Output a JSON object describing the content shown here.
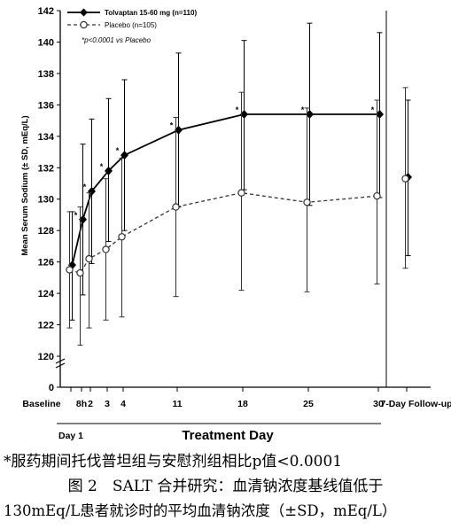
{
  "chart_data": {
    "type": "line",
    "ylabel": "Mean Serum Sodium (± SD, mEq/L)",
    "xlabel": "Treatment Day",
    "ylim": [
      120,
      142
    ],
    "y_ticks": [
      120,
      122,
      124,
      126,
      128,
      130,
      132,
      134,
      136,
      138,
      140,
      142
    ],
    "y_zero_label": "0",
    "x_ticks": [
      "Baseline",
      "8h",
      "2",
      "3",
      "4",
      "11",
      "18",
      "25",
      "30",
      "7-Day Follow-up"
    ],
    "x_sublabel": "Day 1",
    "legend_position": "top-left",
    "annotation": "*p<0.0001 vs Placebo",
    "series": [
      {
        "name": "Tolvaptan 15-60 mg (n=110)",
        "marker": "filled-diamond",
        "line_style": "solid",
        "color": "#000000",
        "x": [
          "Baseline",
          "8h",
          "2",
          "3",
          "4",
          "11",
          "18",
          "25",
          "30",
          "7-Day Follow-up"
        ],
        "mean": [
          125.8,
          128.7,
          130.5,
          131.8,
          132.8,
          134.4,
          135.4,
          135.4,
          135.4,
          131.4
        ],
        "sd_low": [
          122.3,
          123.9,
          125.9,
          127.3,
          128.0,
          129.5,
          130.6,
          129.6,
          130.1,
          126.4
        ],
        "sd_high": [
          129.2,
          133.5,
          135.1,
          136.4,
          137.6,
          139.3,
          140.1,
          141.2,
          140.6,
          136.3
        ],
        "significance": [
          "",
          "*",
          "*",
          "*",
          "*",
          "*",
          "*",
          "*",
          "*",
          ""
        ]
      },
      {
        "name": "Placebo (n=105)",
        "marker": "open-circle",
        "line_style": "dashed",
        "color": "#333333",
        "x": [
          "Baseline",
          "8h",
          "2",
          "3",
          "4",
          "11",
          "18",
          "25",
          "30",
          "7-Day Follow-up"
        ],
        "mean": [
          125.5,
          125.3,
          126.2,
          126.8,
          127.6,
          129.5,
          130.4,
          129.8,
          130.2,
          131.3
        ],
        "sd_low": [
          121.8,
          120.7,
          121.8,
          122.3,
          122.5,
          123.8,
          124.2,
          124.1,
          124.6,
          125.6
        ],
        "sd_high": [
          129.2,
          129.5,
          130.4,
          131.3,
          132.6,
          135.2,
          136.8,
          135.8,
          136.3,
          137.1
        ]
      }
    ]
  },
  "captions": {
    "note": "*服药期间托伐普坦组与安慰剂组相比p值<0.0001",
    "figure": "图 2　SALT 合并研究：血清钠浓度基线值低于",
    "description": "130mEq/L患者就诊时的平均血清钠浓度（±SD，mEq/L）"
  }
}
